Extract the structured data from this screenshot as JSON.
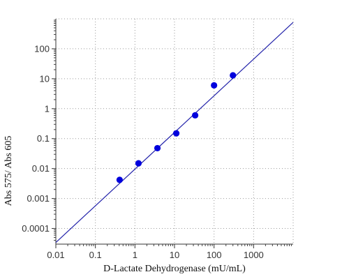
{
  "chart_data": {
    "type": "scatter",
    "title": "",
    "xlabel": "D-Lactate Dehydrogenase (mU/mL)",
    "ylabel": "Abs 575/ Abs 605",
    "x_scale": "log",
    "y_scale": "log",
    "xlim": [
      0.01,
      10000
    ],
    "ylim": [
      3e-05,
      1000
    ],
    "x_ticks": [
      0.01,
      0.1,
      1,
      10,
      100,
      1000
    ],
    "x_tick_labels": [
      "0.01",
      "0.1",
      "1",
      "10",
      "100",
      "1000"
    ],
    "y_ticks": [
      0.0001,
      0.001,
      0.01,
      0.1,
      1,
      10,
      100
    ],
    "y_tick_labels": [
      "0.0001",
      "0.001",
      "0.01",
      "0.1",
      "1",
      "10",
      "100"
    ],
    "grid": true,
    "grid_style": "dotted",
    "series": [
      {
        "type": "scatter",
        "color": "#0000dd",
        "points": [
          {
            "x": 0.41,
            "y": 0.0042
          },
          {
            "x": 1.23,
            "y": 0.015
          },
          {
            "x": 3.7,
            "y": 0.048
          },
          {
            "x": 11.1,
            "y": 0.15
          },
          {
            "x": 33.3,
            "y": 0.6
          },
          {
            "x": 100,
            "y": 6
          },
          {
            "x": 300,
            "y": 13
          }
        ]
      },
      {
        "type": "line",
        "color": "#2222aa",
        "points": [
          {
            "x": 0.01,
            "y": 3.4e-05
          },
          {
            "x": 10000,
            "y": 760
          }
        ]
      }
    ]
  }
}
